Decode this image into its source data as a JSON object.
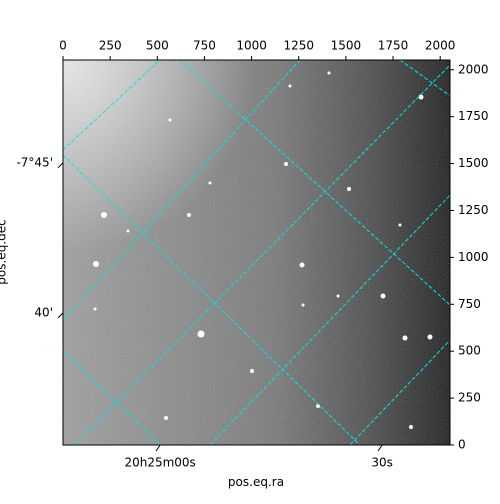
{
  "chart_data": {
    "type": "image",
    "xlabel": "pos.eq.ra",
    "ylabel": "pos.eq.dec",
    "xlim": [
      0,
      2052
    ],
    "ylim": [
      0,
      2052
    ],
    "xticks": [
      0,
      250,
      500,
      750,
      1000,
      1250,
      1500,
      1750,
      2000
    ],
    "yticks": [
      0,
      250,
      500,
      750,
      1000,
      1250,
      1500,
      1750,
      2000
    ],
    "ra_ticks": [
      {
        "value": 515,
        "label": "20h25m00s"
      },
      {
        "value": 1692,
        "label": "30s"
      }
    ],
    "dec_ticks": [
      {
        "value": 1504,
        "label": "-7°45'"
      },
      {
        "value": 704,
        "label": "40'"
      }
    ],
    "grid_color": "#00e5e5"
  }
}
